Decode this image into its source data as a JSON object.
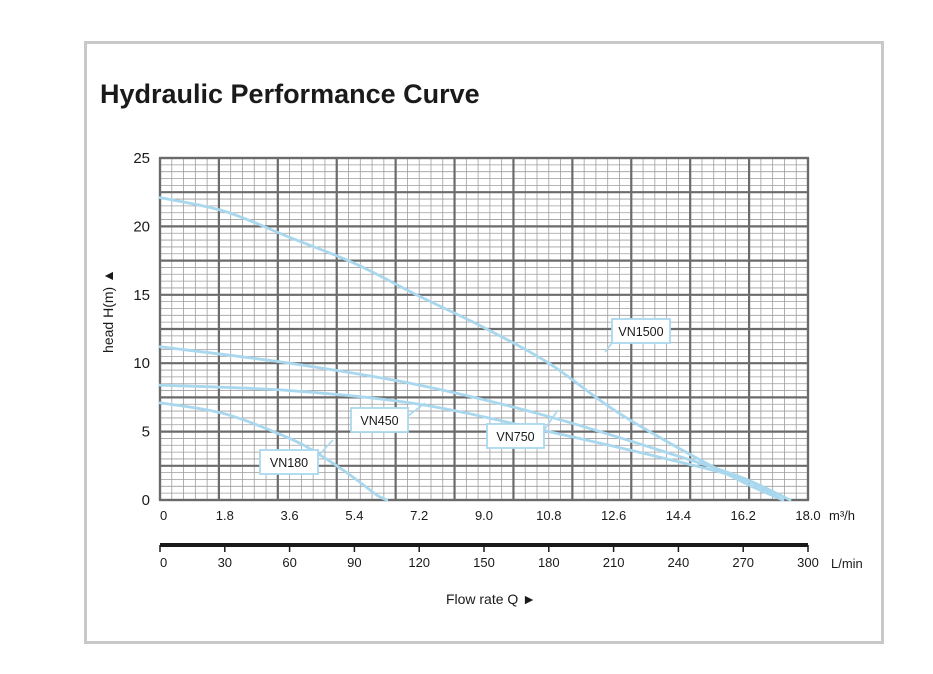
{
  "chart_data": {
    "type": "line",
    "title": "Hydraulic Performance Curve",
    "ylabel": "head H(m) ▲",
    "xlabel": "Flow rate Q  ►",
    "ylim": [
      0,
      25
    ],
    "yticks": [
      "0",
      "5",
      "10",
      "15",
      "20",
      "25"
    ],
    "x_axis_m3h": {
      "unit": "m³/h",
      "range": [
        0,
        18
      ],
      "ticks": [
        {
          "value": 0,
          "label": "0"
        },
        {
          "value": 1.8,
          "label": "1.8"
        },
        {
          "value": 3.6,
          "label": "3.6"
        },
        {
          "value": 5.4,
          "label": "5.4"
        },
        {
          "value": 7.2,
          "label": "7.2"
        },
        {
          "value": 9.0,
          "label": "9.0"
        },
        {
          "value": 10.8,
          "label": "10.8"
        },
        {
          "value": 12.6,
          "label": "12.6"
        },
        {
          "value": 14.4,
          "label": "14.4"
        },
        {
          "value": 16.2,
          "label": "16.2"
        },
        {
          "value": 18.0,
          "label": "18.0"
        }
      ]
    },
    "x_axis_lmin": {
      "unit": "L/min",
      "range": [
        0,
        300
      ],
      "ticks": [
        "0",
        "30",
        "60",
        "90",
        "120",
        "150",
        "180",
        "210",
        "240",
        "270",
        "300"
      ]
    },
    "series": [
      {
        "name": "VN180",
        "points": [
          [
            0,
            7.1
          ],
          [
            1.8,
            6.3
          ],
          [
            3.6,
            4.5
          ],
          [
            4.5,
            3.2
          ],
          [
            5.4,
            1.6
          ],
          [
            6.0,
            0.4
          ],
          [
            6.3,
            0
          ]
        ]
      },
      {
        "name": "VN450",
        "points": [
          [
            0,
            8.4
          ],
          [
            3.6,
            8.0
          ],
          [
            7.2,
            7.0
          ],
          [
            10.8,
            5.0
          ],
          [
            14.4,
            2.8
          ],
          [
            16.2,
            1.5
          ],
          [
            17.3,
            0
          ]
        ]
      },
      {
        "name": "VN750",
        "points": [
          [
            0,
            11.2
          ],
          [
            3.6,
            10.0
          ],
          [
            7.2,
            8.4
          ],
          [
            10.8,
            6.1
          ],
          [
            14.4,
            3.2
          ],
          [
            16.2,
            1.6
          ],
          [
            17.5,
            0
          ]
        ]
      },
      {
        "name": "VN1500",
        "points": [
          [
            0,
            22.1
          ],
          [
            1.8,
            21.1
          ],
          [
            3.6,
            19.2
          ],
          [
            5.4,
            17.3
          ],
          [
            7.2,
            14.9
          ],
          [
            9.0,
            12.6
          ],
          [
            10.8,
            10.0
          ],
          [
            12.6,
            6.6
          ],
          [
            14.4,
            3.8
          ],
          [
            16.2,
            1.3
          ],
          [
            17.3,
            0
          ]
        ]
      }
    ],
    "curve_labels": [
      "VN1500",
      "VN450",
      "VN750",
      "VN180"
    ],
    "curve_color": "#a9d8ee"
  },
  "colors": {
    "grid_major": "#6b6b6b",
    "grid_minor": "#9e9e9e",
    "curve": "#a9d8ee",
    "frame": "#c8c8c8",
    "text": "#1a1a1a"
  }
}
